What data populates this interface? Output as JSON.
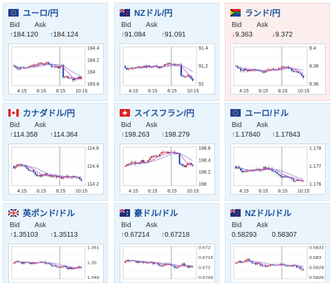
{
  "colors": {
    "up_arrow": "#1a7fc0",
    "down_arrow": "#d03030",
    "candle_up": "#cc2222",
    "candle_down": "#1a3a9c",
    "ma1": "#cc44cc",
    "ma2": "#8888cc"
  },
  "cards": [
    {
      "name": "ユーロ/円",
      "flag": "eu-flag-icon",
      "bid_label": "Bid",
      "ask_label": "Ask",
      "bid": "184.120",
      "ask": "184.124",
      "dir": "up",
      "yticks": [
        "184.4",
        "184.2",
        "184",
        "183.8"
      ],
      "xticks": [
        "4:15",
        "6:15",
        "8:15",
        "10:15"
      ]
    },
    {
      "name": "NZドル/円",
      "flag": "nz-flag-icon",
      "bid_label": "Bid",
      "ask_label": "Ask",
      "bid": "91.084",
      "ask": "91.091",
      "dir": "up",
      "yticks": [
        "91.4",
        "91.2",
        "91"
      ],
      "xticks": [
        "4:15",
        "6:15",
        "8:15",
        "10:15"
      ]
    },
    {
      "name": "ランド/円",
      "flag": "za-flag-icon",
      "bid_label": "Bid",
      "ask_label": "Ask",
      "bid": "9.363",
      "ask": "9.372",
      "dir": "down",
      "yticks": [
        "9.4",
        "9.38",
        "9.36"
      ],
      "xticks": [
        "4:15",
        "6:15",
        "8:15",
        "10:15"
      ]
    },
    {
      "name": "カナダドル/円",
      "flag": "ca-flag-icon",
      "bid_label": "Bid",
      "ask_label": "Ask",
      "bid": "114.358",
      "ask": "114.364",
      "dir": "up",
      "yticks": [
        "114.6",
        "114.4",
        "114.2"
      ],
      "xticks": [
        "4:15",
        "6:15",
        "8:15",
        "10:15"
      ]
    },
    {
      "name": "スイスフラン/円",
      "flag": "ch-flag-icon",
      "bid_label": "Bid",
      "ask_label": "Ask",
      "bid": "198.263",
      "ask": "198.279",
      "dir": "up",
      "yticks": [
        "198.6",
        "198.4",
        "198.2",
        "198"
      ],
      "xticks": [
        "4:15",
        "6:15",
        "8:15",
        "10:15"
      ]
    },
    {
      "name": "ユーロ/ドル",
      "flag": "eu-flag-icon",
      "bid_label": "Bid",
      "ask_label": "Ask",
      "bid": "1.17840",
      "ask": "1.17843",
      "dir": "up",
      "yticks": [
        "1.178",
        "1.177",
        "1.176"
      ],
      "xticks": [
        "4:15",
        "6:15",
        "8:15",
        "10:15"
      ]
    },
    {
      "name": "英ポンド/ドル",
      "flag": "gb-flag-icon",
      "bid_label": "Bid",
      "ask_label": "Ask",
      "bid": "1.35103",
      "ask": "1.35113",
      "dir": "up",
      "yticks": [
        "1.351",
        "1.35",
        "1.349"
      ],
      "xticks": []
    },
    {
      "name": "豪ドル/ドル",
      "flag": "au-flag-icon",
      "bid_label": "Bid",
      "ask_label": "Ask",
      "bid": "0.67214",
      "ask": "0.67218",
      "dir": "up",
      "yticks": [
        "0.672",
        "0.6715",
        "0.671",
        "0.6705"
      ],
      "xticks": []
    },
    {
      "name": "NZドル/ドル",
      "flag": "nz-flag-icon",
      "bid_label": "Bid",
      "ask_label": "Ask",
      "bid": "0.58293",
      "ask": "0.58307",
      "dir": "none",
      "yticks": [
        "0.5832",
        "0.583",
        "0.5828",
        "0.5826"
      ],
      "xticks": []
    }
  ]
}
